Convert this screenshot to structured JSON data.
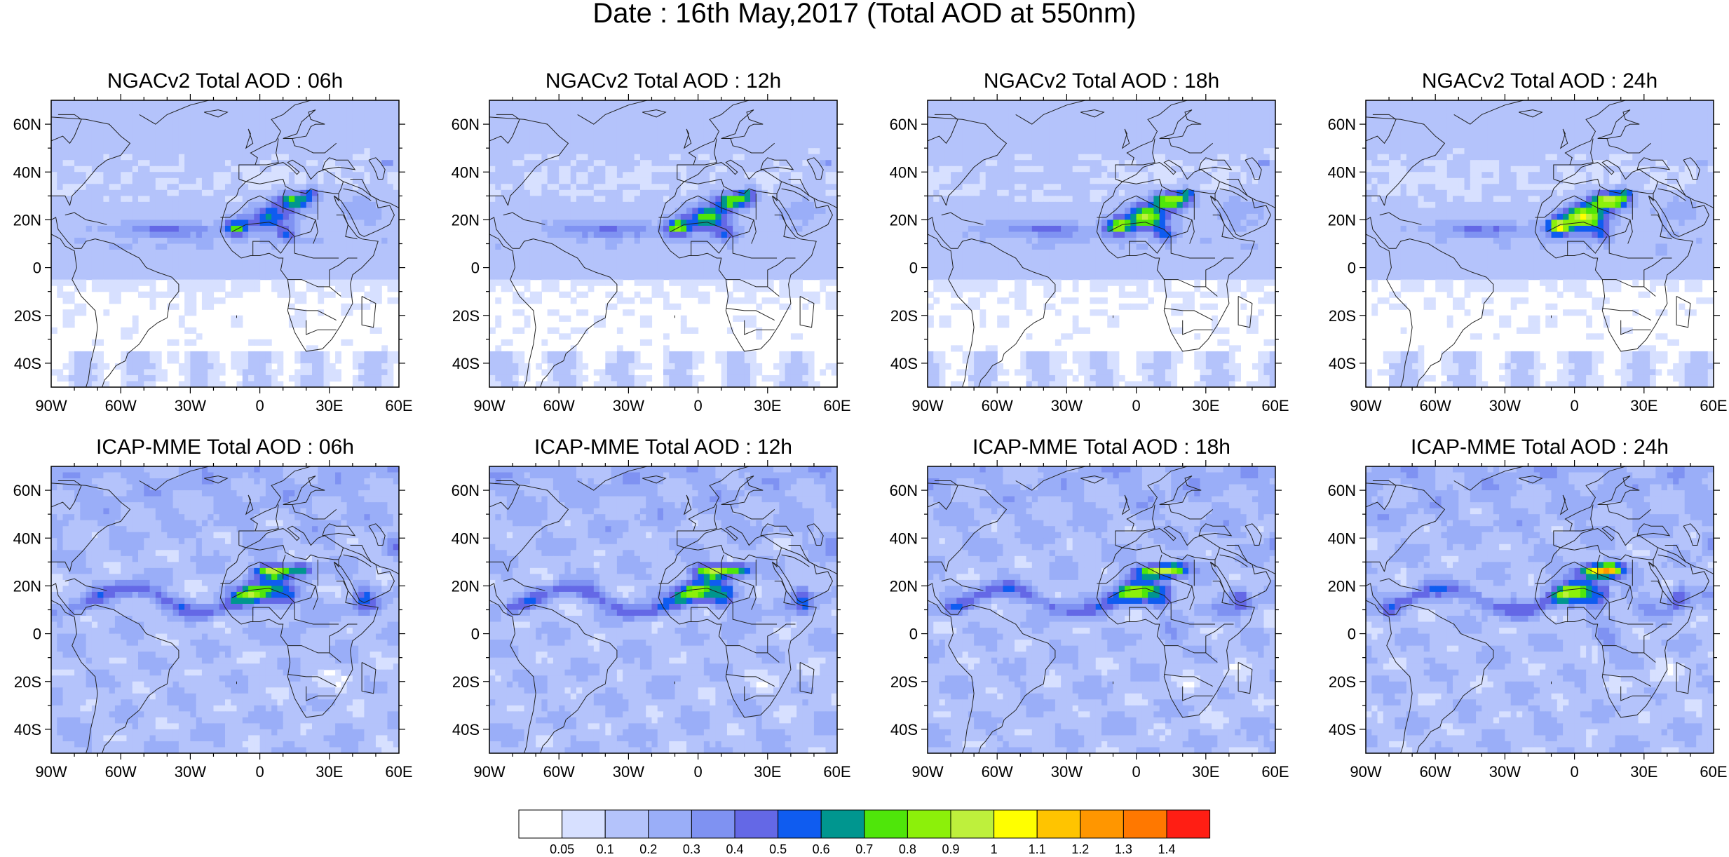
{
  "title": "Date : 16th May,2017 (Total AOD at 550nm)",
  "lat_labels": [
    "60N",
    "40N",
    "20N",
    "0",
    "20S",
    "40S"
  ],
  "lat_values": [
    60,
    40,
    20,
    0,
    -20,
    -40
  ],
  "lon_labels": [
    "90W",
    "60W",
    "30W",
    "0",
    "30E",
    "60E"
  ],
  "lon_values": [
    -90,
    -60,
    -30,
    0,
    30,
    60
  ],
  "domain": {
    "lon_range": [
      -90,
      60
    ],
    "lat_range": [
      -50,
      70
    ]
  },
  "panels": [
    {
      "title": "NGACv2 Total AOD : 06h",
      "model": "NGACv2",
      "hour": 6
    },
    {
      "title": "NGACv2 Total AOD : 12h",
      "model": "NGACv2",
      "hour": 12
    },
    {
      "title": "NGACv2 Total AOD : 18h",
      "model": "NGACv2",
      "hour": 18
    },
    {
      "title": "NGACv2 Total AOD : 24h",
      "model": "NGACv2",
      "hour": 24
    },
    {
      "title": "ICAP-MME Total AOD : 06h",
      "model": "ICAP-MME",
      "hour": 6
    },
    {
      "title": "ICAP-MME Total AOD : 12h",
      "model": "ICAP-MME",
      "hour": 12
    },
    {
      "title": "ICAP-MME Total AOD : 18h",
      "model": "ICAP-MME",
      "hour": 18
    },
    {
      "title": "ICAP-MME Total AOD : 24h",
      "model": "ICAP-MME",
      "hour": 24
    }
  ],
  "colorbar": {
    "labels": [
      "0.05",
      "0.1",
      "0.2",
      "0.3",
      "0.4",
      "0.5",
      "0.6",
      "0.7",
      "0.8",
      "0.9",
      "1",
      "1.1",
      "1.2",
      "1.3",
      "1.4"
    ],
    "colors": [
      "#ffffff",
      "#d7e0ff",
      "#b4c3fb",
      "#9aaef8",
      "#7f92f2",
      "#6468e6",
      "#0f5cf0",
      "#00968f",
      "#4fe60a",
      "#8cf00a",
      "#bef03c",
      "#ffff00",
      "#ffc400",
      "#ff9600",
      "#ff7800",
      "#ff1e14"
    ]
  }
}
